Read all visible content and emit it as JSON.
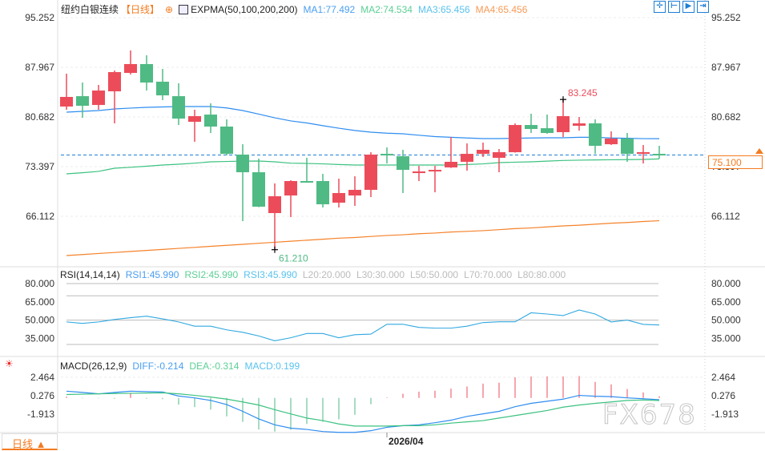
{
  "header": {
    "symbol": "纽约白银连续",
    "period": "【日线】",
    "indicator": "EXPMA(50,100,200,200)",
    "ma1": "MA1:77.492",
    "ma2": "MA2:74.534",
    "ma3": "MA3:65.456",
    "ma4": "MA4:65.456"
  },
  "rsi_header": {
    "name": "RSI(14,14,14)",
    "rsi1": "RSI1:45.990",
    "rsi2": "RSI2:45.990",
    "rsi3": "RSI3:45.990",
    "l20": "L20:20.000",
    "l30": "L30:30.000",
    "l50": "L50:50.000",
    "l70": "L70:70.000",
    "l80": "L80:80.000"
  },
  "macd_header": {
    "name": "MACD(26,12,9)",
    "diff": "DIFF:-0.214",
    "dea": "DEA:-0.314",
    "macd": "MACD:0.199"
  },
  "tools": [
    "crosshair",
    "zoom-range",
    "play",
    "goto-end"
  ],
  "bottom": {
    "period_button": "日线 ▲",
    "date_label": "2026/04"
  },
  "last_price_tag": "75.100",
  "watermark": "FX678",
  "colors": {
    "up": "#ec4c5a",
    "down": "#4fba84",
    "ma1": "#2f8df0",
    "ma2": "#3cc280",
    "ma4": "#f5822a",
    "rsi": "#30a8e0"
  },
  "chart_data": [
    {
      "type": "candlestick",
      "title": "纽约白银连续 日线",
      "yticks": [
        "95.252",
        "87.967",
        "80.682",
        "73.397",
        "66.112"
      ],
      "ylim": [
        60.0,
        95.252
      ],
      "annotations": {
        "high": "83.245",
        "low": "61.210"
      },
      "last_close": 75.1,
      "ohlc": [
        [
          82.21,
          87.03,
          81.74,
          83.62
        ],
        [
          83.73,
          85.73,
          80.56,
          82.32
        ],
        [
          82.44,
          85.38,
          81.74,
          84.56
        ],
        [
          84.44,
          87.5,
          79.74,
          87.26
        ],
        [
          87.14,
          90.43,
          86.91,
          88.44
        ],
        [
          88.44,
          89.73,
          84.56,
          85.73
        ],
        [
          85.85,
          87.73,
          83.15,
          83.85
        ],
        [
          83.73,
          85.62,
          79.5,
          80.44
        ],
        [
          79.97,
          81.74,
          77.04,
          80.8
        ],
        [
          81.03,
          82.68,
          78.33,
          79.27
        ],
        [
          79.27,
          80.33,
          75.04,
          75.27
        ],
        [
          75.16,
          76.68,
          65.4,
          72.57
        ],
        [
          72.57,
          74.57,
          67.45,
          67.52
        ],
        [
          66.58,
          70.93,
          61.21,
          69.05
        ],
        [
          69.16,
          71.4,
          65.99,
          71.28
        ],
        [
          71.28,
          74.69,
          71.04,
          71.16
        ],
        [
          71.28,
          72.34,
          67.4,
          67.87
        ],
        [
          68.11,
          71.63,
          67.4,
          69.52
        ],
        [
          69.16,
          71.98,
          67.64,
          69.99
        ],
        [
          69.99,
          75.51,
          68.93,
          75.16
        ],
        [
          75.27,
          76.21,
          73.86,
          75.04
        ],
        [
          74.92,
          75.86,
          69.52,
          72.92
        ],
        [
          72.45,
          73.51,
          71.28,
          72.69
        ],
        [
          72.69,
          73.51,
          69.63,
          72.92
        ],
        [
          73.28,
          77.74,
          73.2,
          74.1
        ],
        [
          74.1,
          76.8,
          72.81,
          75.27
        ],
        [
          75.27,
          76.92,
          74.8,
          75.86
        ],
        [
          74.69,
          75.98,
          72.57,
          75.51
        ],
        [
          75.51,
          79.74,
          75.45,
          79.5
        ],
        [
          79.5,
          81.15,
          78.33,
          78.92
        ],
        [
          79.03,
          81.03,
          78.21,
          78.33
        ],
        [
          78.45,
          83.245,
          77.74,
          80.8
        ],
        [
          79.39,
          80.68,
          78.68,
          79.74
        ],
        [
          79.74,
          80.33,
          75.27,
          76.45
        ],
        [
          76.68,
          78.56,
          76.57,
          77.51
        ],
        [
          77.51,
          78.33,
          74.1,
          75.27
        ],
        [
          75.39,
          76.57,
          73.86,
          75.51
        ],
        [
          75.27,
          76.45,
          74.57,
          75.1
        ]
      ],
      "series": [
        {
          "name": "MA1",
          "values": [
            81.39,
            81.5,
            81.62,
            81.86,
            81.98,
            82.09,
            82.15,
            82.21,
            82.21,
            82.21,
            82.0,
            81.62,
            81.1,
            80.56,
            80.1,
            79.8,
            79.4,
            79.03,
            78.7,
            78.45,
            78.3,
            78.21,
            78.0,
            77.8,
            77.7,
            77.6,
            77.51,
            77.51,
            77.55,
            77.6,
            77.63,
            77.63,
            77.7,
            77.7,
            77.6,
            77.55,
            77.5,
            77.49
          ]
        },
        {
          "name": "MA2",
          "values": [
            72.34,
            72.5,
            72.7,
            73.16,
            73.3,
            73.45,
            73.63,
            73.75,
            73.9,
            74.1,
            74.15,
            74.2,
            74.22,
            74.1,
            73.9,
            73.86,
            73.8,
            73.7,
            73.63,
            73.63,
            73.63,
            73.63,
            73.63,
            73.63,
            73.63,
            73.7,
            73.8,
            73.98,
            74.05,
            74.1,
            74.2,
            74.3,
            74.34,
            74.38,
            74.4,
            74.42,
            74.45,
            74.53
          ]
        },
        {
          "name": "MA4",
          "values": [
            60.35,
            60.5,
            60.65,
            60.8,
            60.95,
            61.1,
            61.25,
            61.4,
            61.55,
            61.7,
            61.85,
            62.0,
            62.15,
            62.3,
            62.45,
            62.6,
            62.75,
            62.9,
            63.0,
            63.15,
            63.3,
            63.4,
            63.55,
            63.65,
            63.8,
            63.9,
            64.0,
            64.15,
            64.3,
            64.4,
            64.55,
            64.7,
            64.8,
            64.95,
            65.1,
            65.2,
            65.35,
            65.456
          ]
        }
      ]
    },
    {
      "type": "line",
      "title": "RSI(14,14,14)",
      "yticks": [
        "80.000",
        "65.000",
        "50.000",
        "35.000"
      ],
      "levels": [
        80,
        70,
        50,
        30,
        20
      ],
      "series": [
        {
          "name": "RSI1",
          "values": [
            48.5,
            47.3,
            48.5,
            50.5,
            52,
            53.2,
            51,
            48.5,
            45,
            45,
            42,
            40,
            37,
            33,
            35.5,
            39,
            39,
            35.5,
            38,
            38.5,
            46.6,
            46.6,
            44,
            43.4,
            43.4,
            45,
            48,
            48.6,
            48.6,
            56,
            55,
            53.7,
            58.3,
            55,
            48.5,
            50,
            46.5,
            45.99
          ]
        }
      ]
    },
    {
      "type": "bar+line",
      "title": "MACD(26,12,9)",
      "yticks": [
        "2.464",
        "0.276",
        "-1.913"
      ],
      "macd": [
        0.15,
        -0.05,
        -0.05,
        -0.1,
        0.6,
        -0.1,
        -0.15,
        -0.8,
        -1.1,
        -1.4,
        -2.2,
        -2.85,
        -3.75,
        -4.0,
        -3.8,
        -3.1,
        -2.85,
        -2.55,
        -2.0,
        -0.75,
        0.05,
        0.5,
        0.75,
        0.85,
        1.1,
        1.35,
        1.7,
        1.8,
        2.45,
        2.55,
        2.55,
        2.55,
        2.6,
        1.9,
        1.6,
        1.05,
        0.65,
        0.199
      ],
      "diff": [
        0.8,
        0.65,
        0.48,
        0.65,
        0.8,
        0.75,
        0.7,
        0.22,
        0,
        -0.3,
        -0.8,
        -1.6,
        -2.5,
        -3.2,
        -3.6,
        -3.75,
        -4.0,
        -4.1,
        -4.1,
        -3.9,
        -3.5,
        -3.3,
        -3.2,
        -2.95,
        -2.65,
        -2.2,
        -1.9,
        -1.6,
        -1.05,
        -0.65,
        -0.4,
        -0.15,
        0.3,
        0.2,
        0.15,
        0,
        -0.1,
        -0.214
      ],
      "dea": [
        0.4,
        0.44,
        0.48,
        0.52,
        0.55,
        0.58,
        0.6,
        0.48,
        0.3,
        0.1,
        -0.15,
        -0.48,
        -0.85,
        -1.4,
        -1.9,
        -2.4,
        -2.7,
        -3.1,
        -3.35,
        -3.35,
        -3.35,
        -3.3,
        -3.3,
        -3.2,
        -3.0,
        -2.85,
        -2.7,
        -2.4,
        -2.1,
        -1.8,
        -1.5,
        -1.1,
        -0.85,
        -0.65,
        -0.48,
        -0.3,
        -0.25,
        -0.314
      ]
    }
  ]
}
